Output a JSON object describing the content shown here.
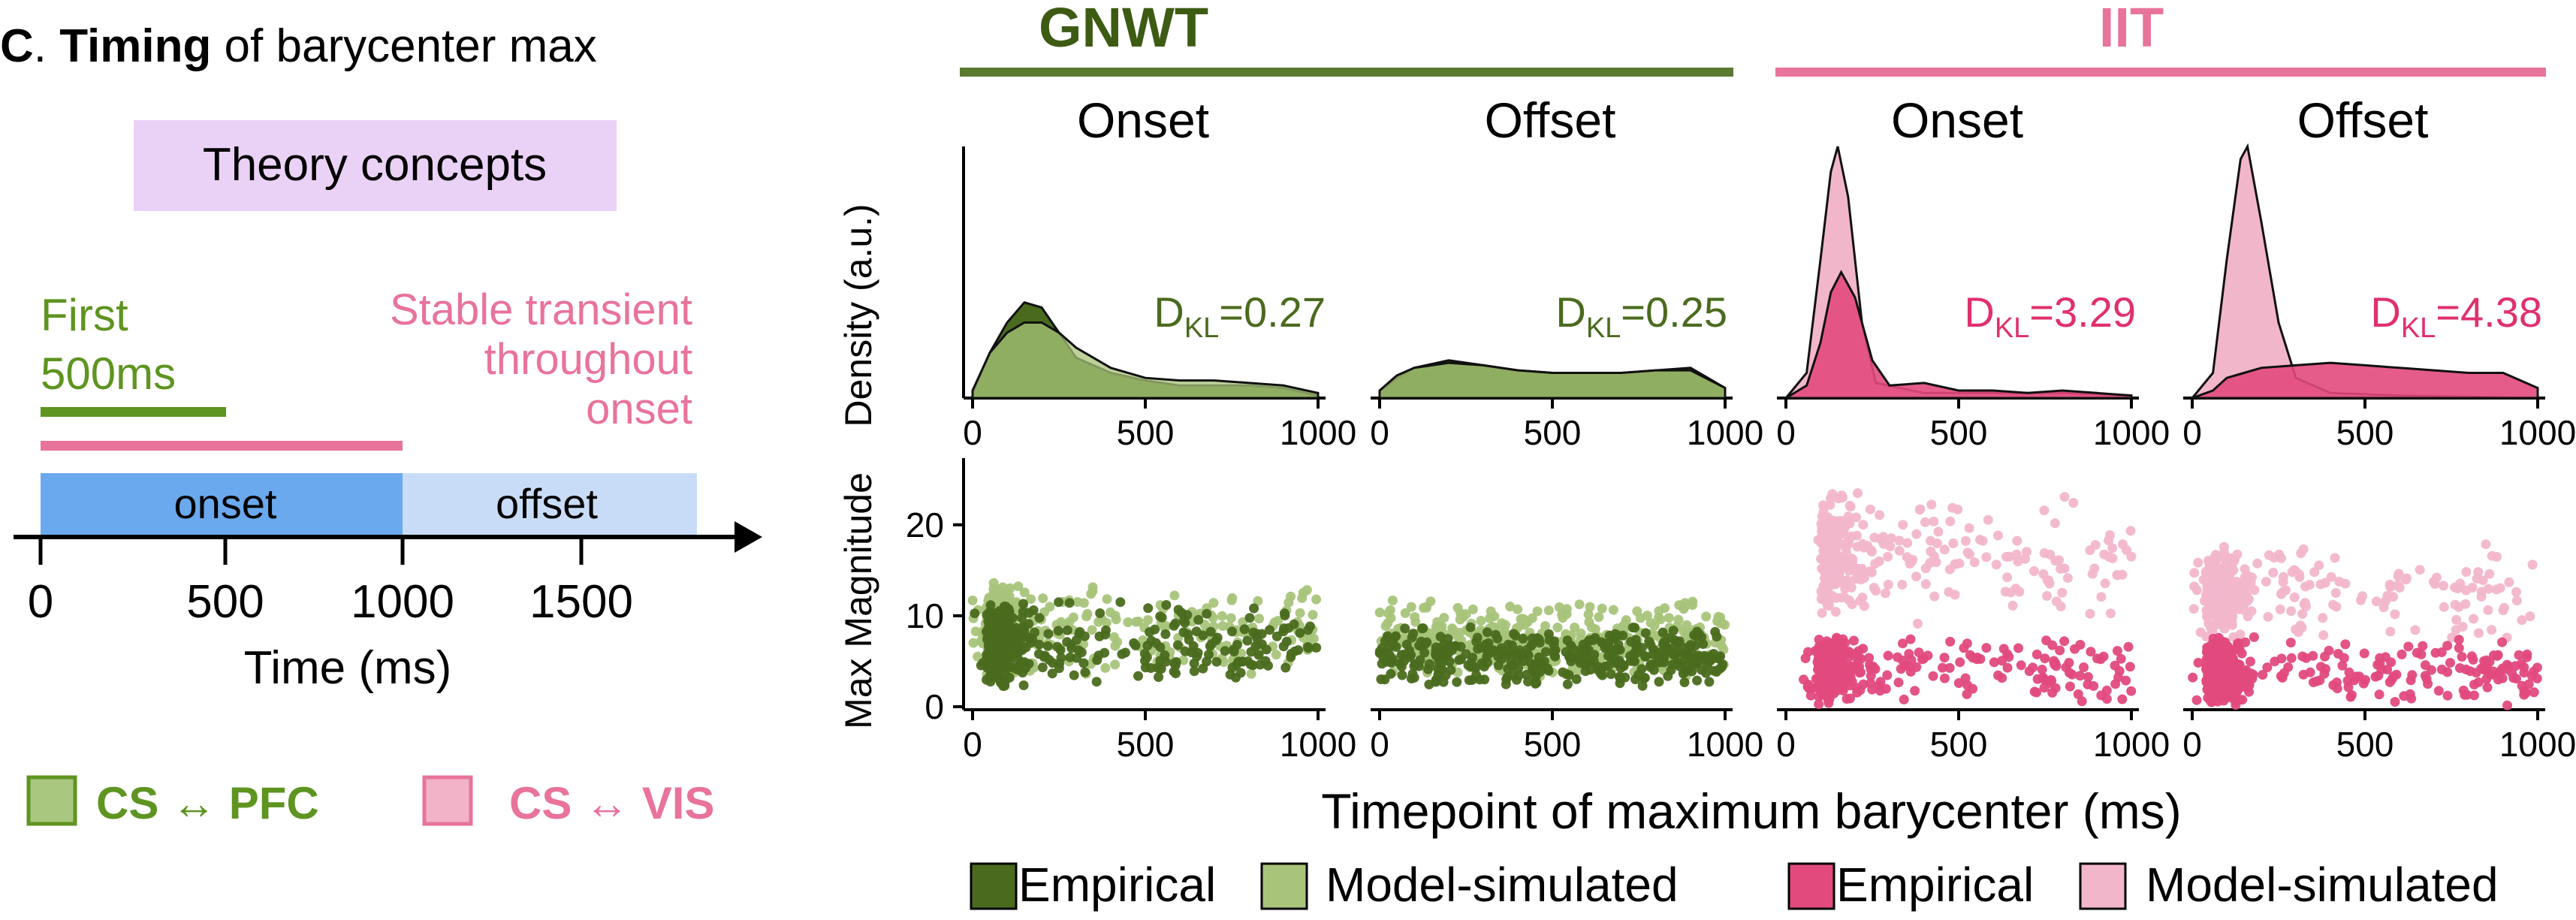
{
  "panel": {
    "letter": "C",
    "title_bold": "Timing",
    "title_rest": "of barycenter max",
    "theory_box_label": "Theory concepts",
    "gnwt_concept_line1": "First",
    "gnwt_concept_line2": "500ms",
    "iit_concept_lines": [
      "Stable transient",
      "throughout",
      "onset"
    ],
    "timeline_onset_label": "onset",
    "timeline_offset_label": "offset",
    "timeline_ticks": [
      "0",
      "500",
      "1000",
      "1500"
    ],
    "timeline_xlabel": "Time (ms)",
    "legend_left": [
      {
        "label": "CS ↔ PFC",
        "color": "#5e9420",
        "fill": "#a9c77f"
      },
      {
        "label": "CS ↔ VIS",
        "color": "#e8739b",
        "fill": "#f2b3c8"
      }
    ]
  },
  "colors": {
    "gnwt_dark": "#4a6b1e",
    "gnwt_light": "#a8c47a",
    "gnwt_header": "#5a7a2e",
    "iit_dark": "#e24a7e",
    "iit_light": "#f2b6cb",
    "iit_header": "#e8739b",
    "gnwt_text": "#4a6b1e",
    "iit_text": "#e0306e",
    "onset_fill": "#6aa9ee",
    "offset_fill": "#c9dcf7",
    "theory_fill": "#ead2f7"
  },
  "headers": {
    "gnwt": "GNWT",
    "iit": "IIT"
  },
  "chart_data": {
    "type": "density+scatter",
    "density_ylabel": "Density (a.u.)",
    "scatter_ylabel": "Max Magnitude",
    "xlabel": "Timepoint of maximum barycenter (ms)",
    "xticks": [
      "0",
      "500",
      "1000"
    ],
    "xlim": [
      0,
      1000
    ],
    "scatter_ylim": [
      0,
      27
    ],
    "scatter_yticks": [
      "0",
      "10",
      "20"
    ],
    "dkl_prefix": "D",
    "dkl_sub": "KL",
    "facets": [
      {
        "theory": "GNWT",
        "window": "Onset",
        "dkl": "=0.27",
        "emp_density": [
          [
            0,
            0.02
          ],
          [
            50,
            0.18
          ],
          [
            100,
            0.3
          ],
          [
            150,
            0.38
          ],
          [
            200,
            0.36
          ],
          [
            250,
            0.26
          ],
          [
            300,
            0.16
          ],
          [
            400,
            0.1
          ],
          [
            500,
            0.07
          ],
          [
            600,
            0.05
          ],
          [
            700,
            0.05
          ],
          [
            800,
            0.05
          ],
          [
            900,
            0.04
          ],
          [
            1000,
            0.01
          ]
        ],
        "sim_density": [
          [
            0,
            0.03
          ],
          [
            50,
            0.18
          ],
          [
            100,
            0.26
          ],
          [
            150,
            0.3
          ],
          [
            200,
            0.3
          ],
          [
            250,
            0.26
          ],
          [
            300,
            0.2
          ],
          [
            400,
            0.12
          ],
          [
            500,
            0.08
          ],
          [
            600,
            0.07
          ],
          [
            700,
            0.07
          ],
          [
            800,
            0.06
          ],
          [
            900,
            0.05
          ],
          [
            1000,
            0.02
          ]
        ],
        "emp_scatter": {
          "x": [
            0,
            1000
          ],
          "y": [
            2,
            12
          ],
          "count": 420
        },
        "sim_scatter": {
          "x": [
            0,
            1000
          ],
          "y": [
            3,
            14
          ],
          "count": 420
        }
      },
      {
        "theory": "GNWT",
        "window": "Offset",
        "dkl": "=0.25",
        "emp_density": [
          [
            0,
            0.03
          ],
          [
            50,
            0.08
          ],
          [
            100,
            0.12
          ],
          [
            200,
            0.15
          ],
          [
            300,
            0.13
          ],
          [
            400,
            0.11
          ],
          [
            500,
            0.1
          ],
          [
            600,
            0.1
          ],
          [
            700,
            0.1
          ],
          [
            800,
            0.11
          ],
          [
            900,
            0.12
          ],
          [
            1000,
            0.04
          ]
        ],
        "sim_density": [
          [
            0,
            0.03
          ],
          [
            50,
            0.09
          ],
          [
            100,
            0.12
          ],
          [
            200,
            0.14
          ],
          [
            300,
            0.13
          ],
          [
            400,
            0.11
          ],
          [
            500,
            0.1
          ],
          [
            600,
            0.1
          ],
          [
            700,
            0.1
          ],
          [
            800,
            0.11
          ],
          [
            900,
            0.11
          ],
          [
            1000,
            0.04
          ]
        ],
        "emp_scatter": {
          "x": [
            0,
            1000
          ],
          "y": [
            2,
            9
          ],
          "count": 380
        },
        "sim_scatter": {
          "x": [
            0,
            1000
          ],
          "y": [
            3,
            12
          ],
          "count": 380
        }
      },
      {
        "theory": "IIT",
        "window": "Onset",
        "dkl": "=3.29",
        "emp_density": [
          [
            0,
            0.0
          ],
          [
            60,
            0.05
          ],
          [
            100,
            0.22
          ],
          [
            130,
            0.42
          ],
          [
            160,
            0.5
          ],
          [
            200,
            0.4
          ],
          [
            250,
            0.15
          ],
          [
            300,
            0.05
          ],
          [
            400,
            0.06
          ],
          [
            500,
            0.03
          ],
          [
            600,
            0.03
          ],
          [
            700,
            0.02
          ],
          [
            800,
            0.03
          ],
          [
            900,
            0.02
          ],
          [
            1000,
            0.01
          ]
        ],
        "sim_density": [
          [
            0,
            0.0
          ],
          [
            60,
            0.1
          ],
          [
            100,
            0.55
          ],
          [
            130,
            0.9
          ],
          [
            150,
            1.0
          ],
          [
            180,
            0.8
          ],
          [
            220,
            0.3
          ],
          [
            260,
            0.06
          ],
          [
            400,
            0.02
          ],
          [
            600,
            0.02
          ],
          [
            800,
            0.02
          ],
          [
            1000,
            0.01
          ]
        ],
        "emp_scatter": {
          "x": [
            50,
            1000
          ],
          "y": [
            0,
            8
          ],
          "count": 360
        },
        "sim_scatter": {
          "x": [
            60,
            1000
          ],
          "y": [
            9,
            24
          ],
          "count": 320
        }
      },
      {
        "theory": "IIT",
        "window": "Offset",
        "dkl": "=4.38",
        "emp_density": [
          [
            0,
            0.0
          ],
          [
            60,
            0.03
          ],
          [
            100,
            0.08
          ],
          [
            150,
            0.1
          ],
          [
            200,
            0.12
          ],
          [
            300,
            0.13
          ],
          [
            400,
            0.14
          ],
          [
            500,
            0.13
          ],
          [
            600,
            0.12
          ],
          [
            700,
            0.11
          ],
          [
            800,
            0.1
          ],
          [
            900,
            0.1
          ],
          [
            1000,
            0.04
          ]
        ],
        "sim_density": [
          [
            0,
            0.0
          ],
          [
            60,
            0.1
          ],
          [
            100,
            0.55
          ],
          [
            140,
            0.95
          ],
          [
            160,
            1.0
          ],
          [
            200,
            0.7
          ],
          [
            250,
            0.3
          ],
          [
            300,
            0.08
          ],
          [
            400,
            0.02
          ],
          [
            600,
            0.01
          ],
          [
            1000,
            0.0
          ]
        ],
        "emp_scatter": {
          "x": [
            0,
            1000
          ],
          "y": [
            0,
            8
          ],
          "count": 420
        },
        "sim_scatter": {
          "x": [
            0,
            1000
          ],
          "y": [
            7,
            18
          ],
          "count": 320
        }
      }
    ],
    "legend": [
      {
        "label": "Empirical",
        "color": "#4a6b1e"
      },
      {
        "label": "Model-simulated",
        "color": "#a8c47a"
      },
      {
        "label": "Empirical",
        "color": "#e24a7e"
      },
      {
        "label": "Model-simulated",
        "color": "#f2b6cb"
      }
    ]
  }
}
